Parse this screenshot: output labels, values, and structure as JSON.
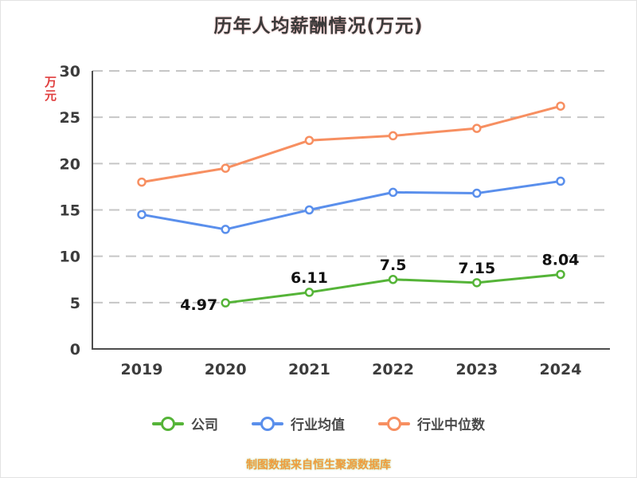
{
  "title": "历年人均薪酬情况(万元)",
  "y_axis_unit": "万元",
  "footer": "制图数据来自恒生聚源数据库",
  "colors": {
    "axis": "#4d4d4d",
    "grid": "#c6c6c6",
    "tick": "#3c3c3c",
    "value_label": "#111111",
    "title": "#3b3b3b",
    "unit": "#e03e3e",
    "footer": "#f09c3e"
  },
  "chart_data": {
    "type": "line",
    "title": "历年人均薪酬情况(万元)",
    "categories": [
      "2019",
      "2020",
      "2021",
      "2022",
      "2023",
      "2024"
    ],
    "series": [
      {
        "key": "company",
        "name": "公司",
        "color": "#55b438",
        "values": [
          null,
          4.97,
          6.11,
          7.5,
          7.15,
          8.04
        ],
        "labels": [
          "",
          "4.97",
          "6.11",
          "7.5",
          "7.15",
          "8.04"
        ]
      },
      {
        "key": "industry-avg",
        "name": "行业均值",
        "color": "#5a8fec",
        "values": [
          14.5,
          12.9,
          15.0,
          16.9,
          16.8,
          18.1
        ]
      },
      {
        "key": "industry-median",
        "name": "行业中位数",
        "color": "#f78f61",
        "values": [
          18.0,
          19.5,
          22.5,
          23.0,
          23.8,
          26.2
        ]
      }
    ],
    "ylim": [
      0,
      30
    ],
    "yticks": [
      0,
      5,
      10,
      15,
      20,
      25,
      30
    ],
    "ylabel": "万元",
    "xlabel": "",
    "grid": "horizontal-dashed",
    "legend_position": "bottom",
    "marker": "hollow-circle"
  }
}
